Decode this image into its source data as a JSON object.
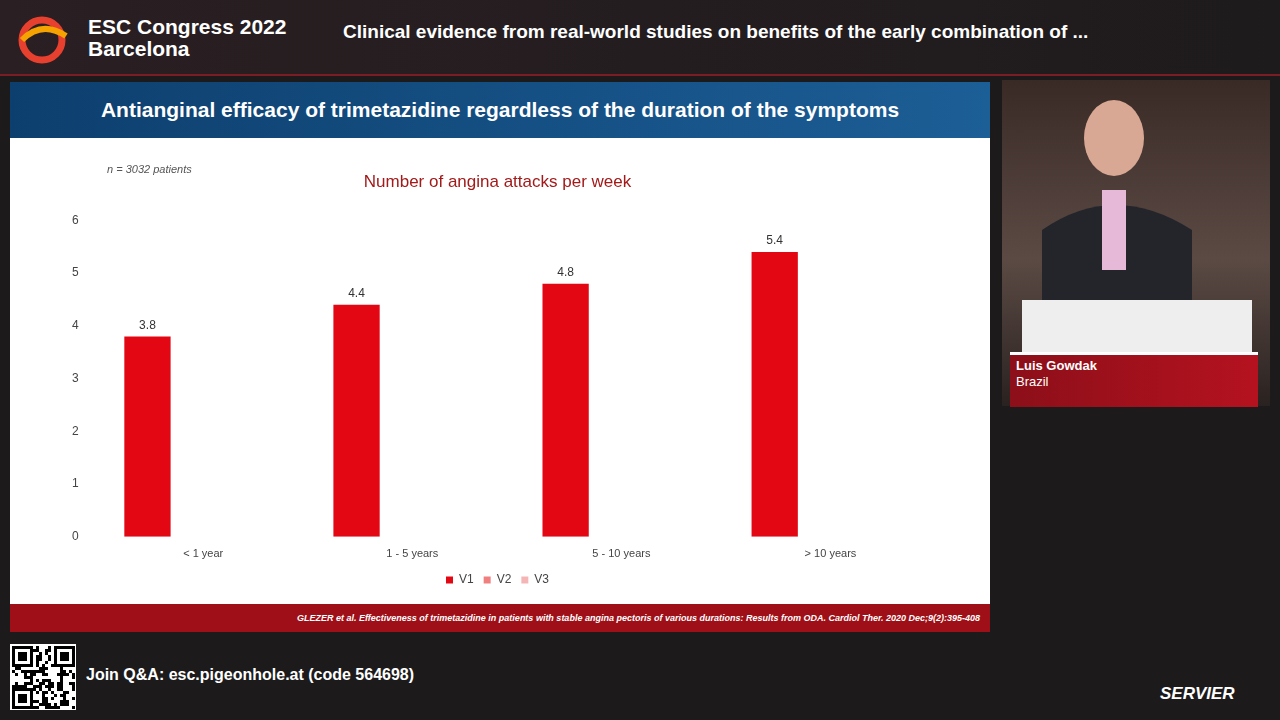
{
  "header": {
    "event": "ESC Congress 2022",
    "city": "Barcelona",
    "session": "Clinical evidence from real-world studies on benefits of the early combination of ..."
  },
  "slide": {
    "title": "Antianginal efficacy of trimetazidine regardless of the duration of the symptoms",
    "note": "n = 3032 patients",
    "reference": "GLEZER et al. Effectiveness of trimetazidine in patients with stable angina pectoris of various durations: Results from ODA. Cardiol Ther. 2020 Dec;9(2):395-408"
  },
  "speaker": {
    "name": "Luis Gowdak",
    "country": "Brazil"
  },
  "footer": {
    "qa": "Join Q&A: esc.pigeonhole.at (code 564698)",
    "sponsor": "SERVIER"
  },
  "chart_data": {
    "type": "bar",
    "title": "Number of angina attacks per week",
    "categories": [
      "< 1 year",
      "1 - 5 years",
      "5 - 10 years",
      "> 10 years"
    ],
    "series": [
      {
        "name": "V1",
        "color": "#e30613",
        "values": [
          3.8,
          4.4,
          4.8,
          5.4
        ]
      },
      {
        "name": "V2",
        "color": "#f08080",
        "values": [
          null,
          null,
          null,
          null
        ]
      },
      {
        "name": "V3",
        "color": "#f5b5b5",
        "values": [
          null,
          null,
          null,
          null
        ]
      }
    ],
    "ylim": [
      0,
      6
    ],
    "yticks": [
      0,
      1,
      2,
      3,
      4,
      5,
      6
    ],
    "grid": false,
    "legend": "bottom",
    "data_labels": true
  }
}
